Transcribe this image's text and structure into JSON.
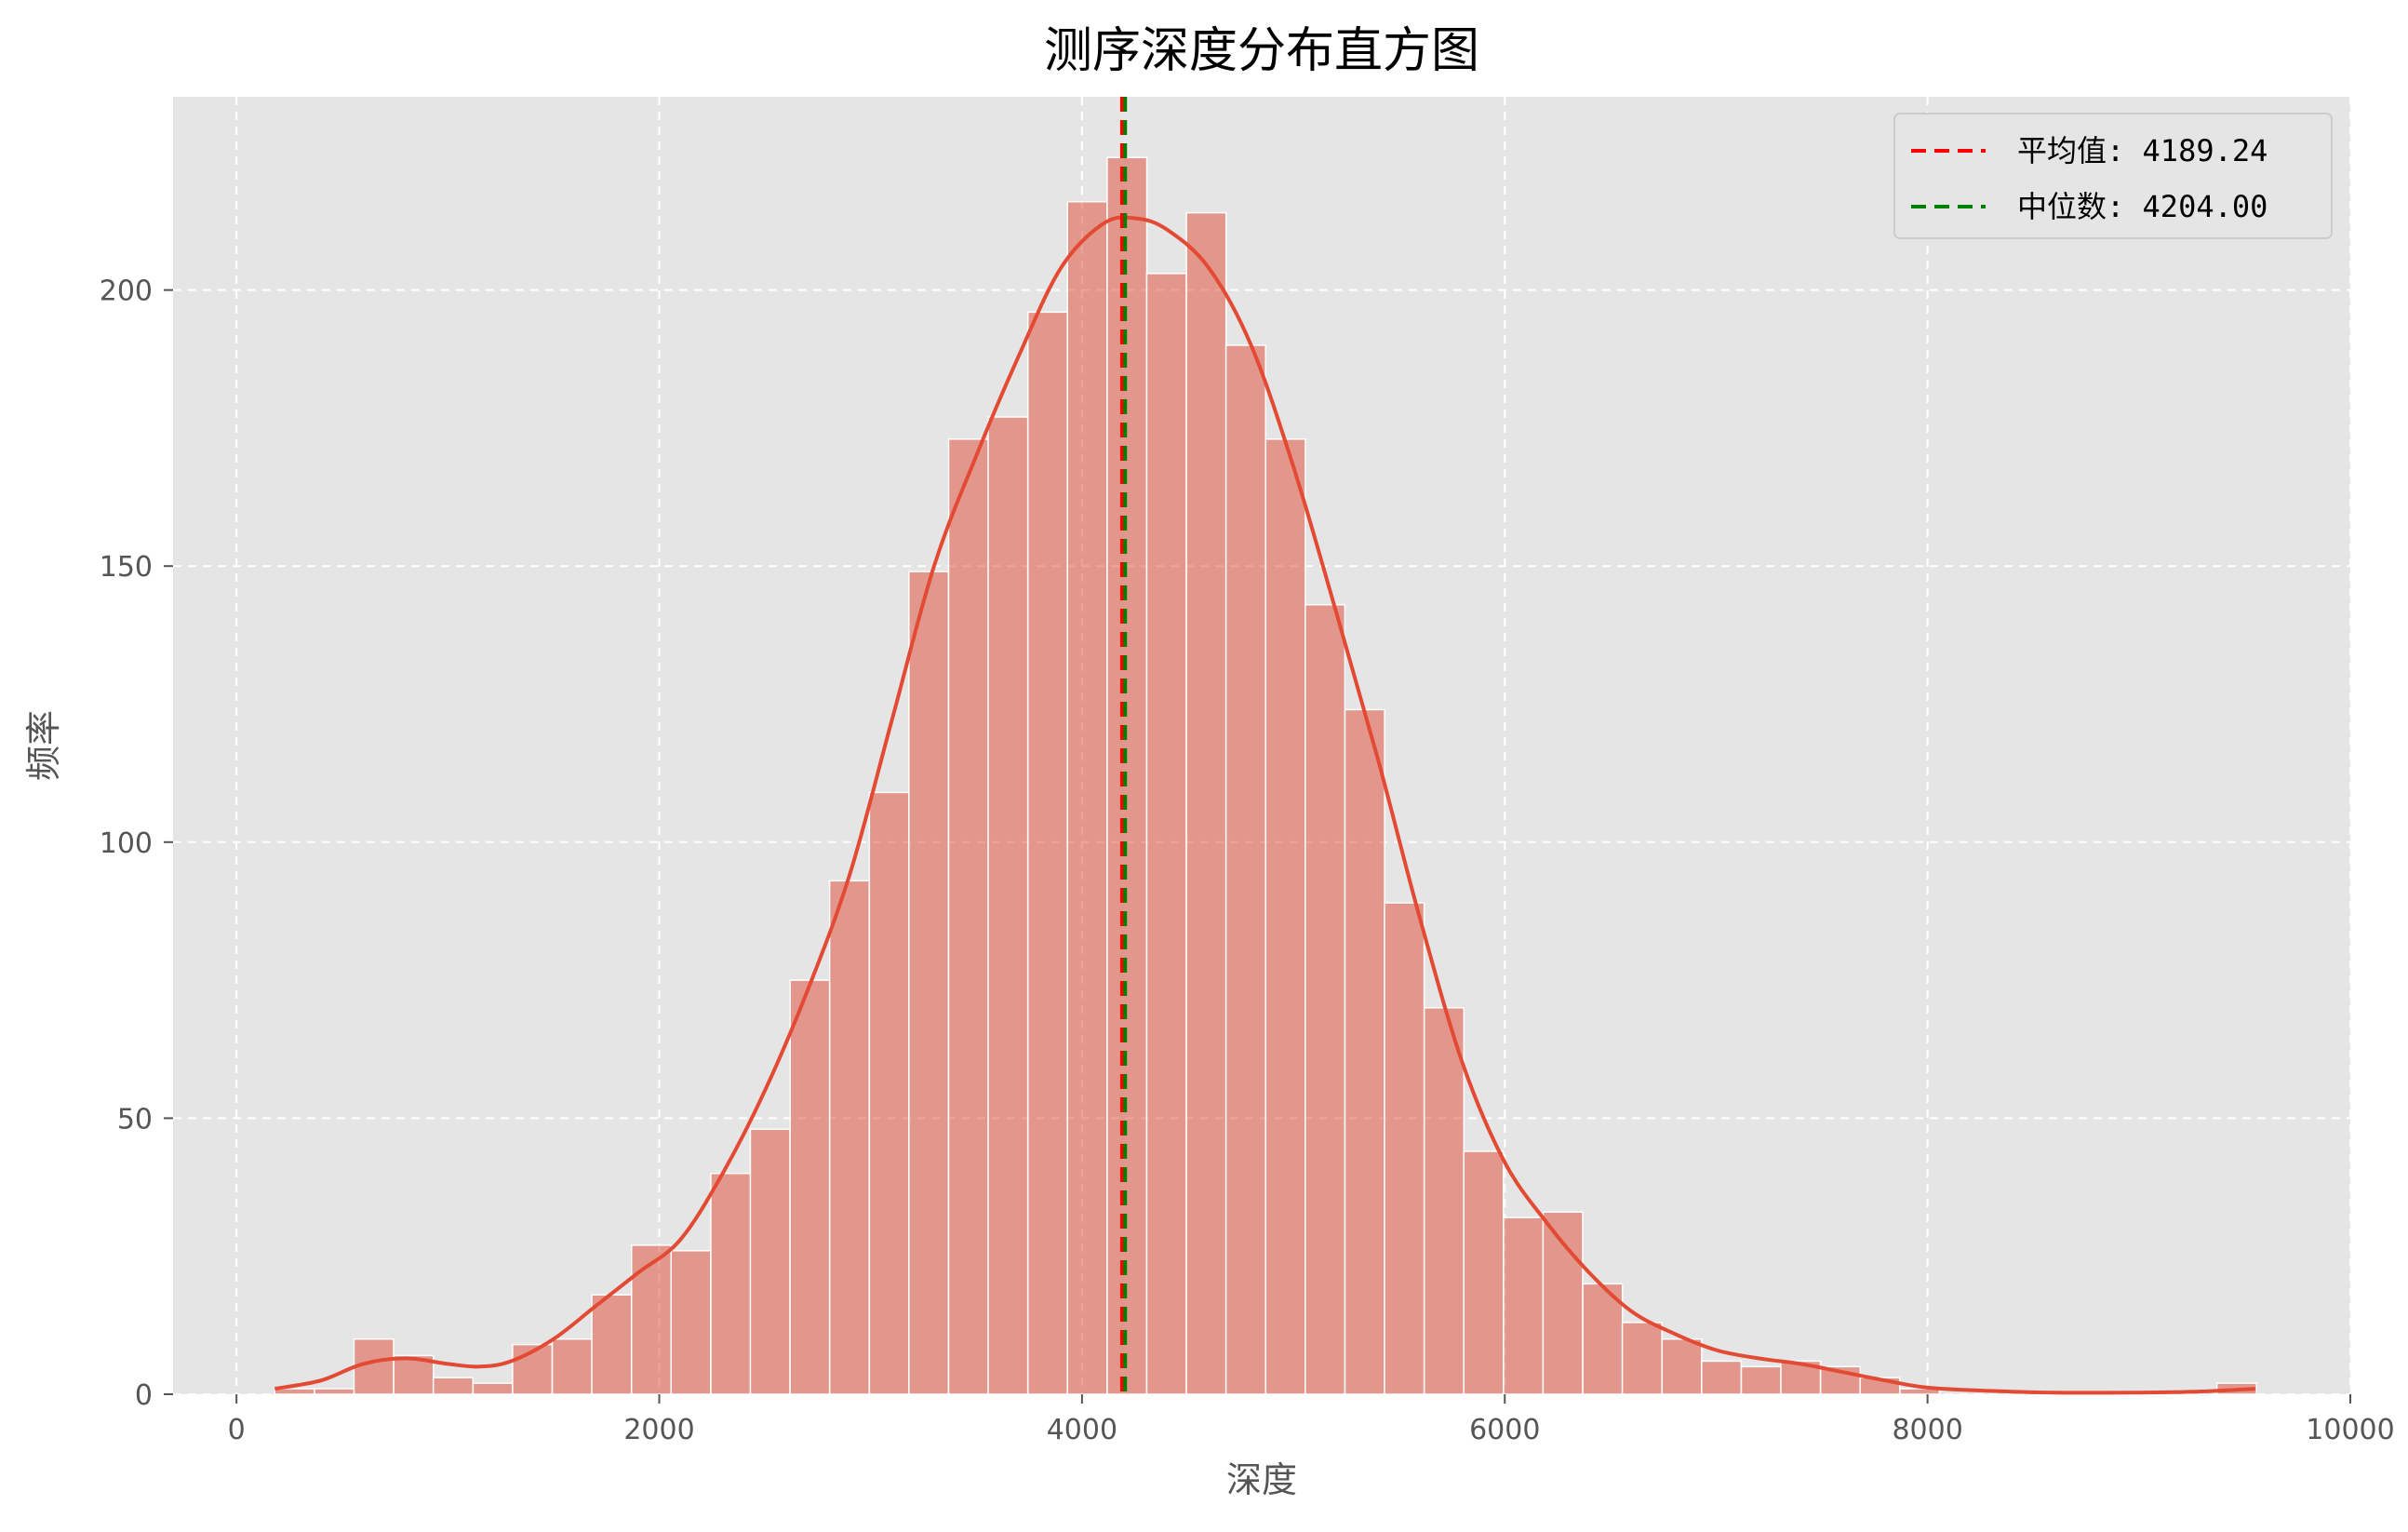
{
  "chart_data": {
    "type": "bar",
    "title": "测序深度分布直方图",
    "xlabel": "深度",
    "ylabel": "频率",
    "xlim": [
      -300,
      10000
    ],
    "ylim": [
      0,
      235
    ],
    "xticks": [
      0,
      2000,
      4000,
      6000,
      8000,
      10000
    ],
    "yticks": [
      0,
      50,
      100,
      150,
      200
    ],
    "grid": true,
    "legend_position": "top-right",
    "bar_color": "#e24a33",
    "bin_width": 187.5,
    "bins": [
      {
        "x0": 181,
        "count": 1
      },
      {
        "x0": 369,
        "count": 1
      },
      {
        "x0": 556,
        "count": 10
      },
      {
        "x0": 744,
        "count": 7
      },
      {
        "x0": 931,
        "count": 3
      },
      {
        "x0": 1119,
        "count": 2
      },
      {
        "x0": 1306,
        "count": 9
      },
      {
        "x0": 1494,
        "count": 10
      },
      {
        "x0": 1681,
        "count": 18
      },
      {
        "x0": 1869,
        "count": 27
      },
      {
        "x0": 2056,
        "count": 26
      },
      {
        "x0": 2244,
        "count": 40
      },
      {
        "x0": 2431,
        "count": 48
      },
      {
        "x0": 2619,
        "count": 75
      },
      {
        "x0": 2806,
        "count": 93
      },
      {
        "x0": 2994,
        "count": 109
      },
      {
        "x0": 3181,
        "count": 149
      },
      {
        "x0": 3369,
        "count": 173
      },
      {
        "x0": 3556,
        "count": 177
      },
      {
        "x0": 3744,
        "count": 196
      },
      {
        "x0": 3931,
        "count": 216
      },
      {
        "x0": 4119,
        "count": 224
      },
      {
        "x0": 4306,
        "count": 203
      },
      {
        "x0": 4494,
        "count": 214
      },
      {
        "x0": 4681,
        "count": 190
      },
      {
        "x0": 4869,
        "count": 173
      },
      {
        "x0": 5056,
        "count": 143
      },
      {
        "x0": 5244,
        "count": 124
      },
      {
        "x0": 5431,
        "count": 89
      },
      {
        "x0": 5619,
        "count": 70
      },
      {
        "x0": 5806,
        "count": 44
      },
      {
        "x0": 5994,
        "count": 32
      },
      {
        "x0": 6181,
        "count": 33
      },
      {
        "x0": 6369,
        "count": 20
      },
      {
        "x0": 6556,
        "count": 13
      },
      {
        "x0": 6744,
        "count": 10
      },
      {
        "x0": 6931,
        "count": 6
      },
      {
        "x0": 7119,
        "count": 5
      },
      {
        "x0": 7306,
        "count": 6
      },
      {
        "x0": 7494,
        "count": 5
      },
      {
        "x0": 7681,
        "count": 3
      },
      {
        "x0": 7869,
        "count": 1
      },
      {
        "x0": 9369,
        "count": 2
      }
    ],
    "kde": {
      "name": "kde",
      "color": "#e24a33",
      "x": [
        181,
        400,
        600,
        800,
        1000,
        1150,
        1300,
        1500,
        1700,
        1900,
        2100,
        2300,
        2500,
        2700,
        2900,
        3100,
        3300,
        3500,
        3700,
        3900,
        4100,
        4250,
        4400,
        4600,
        4800,
        5000,
        5200,
        5400,
        5600,
        5800,
        6000,
        6200,
        6400,
        6600,
        6800,
        7000,
        7200,
        7400,
        7600,
        7800,
        8000,
        8300,
        8600,
        9000,
        9300,
        9550
      ],
      "y": [
        1,
        2.5,
        5.5,
        6.5,
        5.5,
        5,
        6,
        10,
        16,
        22,
        28,
        40,
        55,
        73,
        94,
        122,
        150,
        170,
        188,
        204,
        212,
        213,
        211,
        204,
        190,
        168,
        142,
        115,
        86,
        60,
        42,
        31,
        22,
        15,
        11,
        8,
        6.5,
        5.5,
        4,
        2.5,
        1.2,
        0.6,
        0.3,
        0.3,
        0.5,
        1
      ]
    },
    "lines": [
      {
        "name": "平均值: 4189.24",
        "x": 4189.24,
        "color": "#ff0000",
        "style": "dashed"
      },
      {
        "name": "中位数: 4204.00",
        "x": 4204.0,
        "color": "#008000",
        "style": "dashed"
      }
    ]
  }
}
